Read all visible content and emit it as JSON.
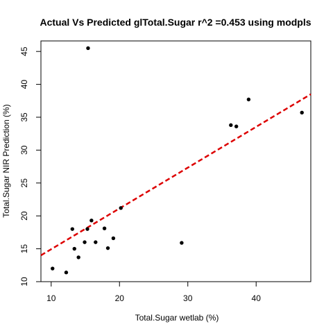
{
  "chart_data": {
    "type": "scatter",
    "title": "Actual Vs Predicted glTotal.Sugar r^2 =0.453 using modpls",
    "xlabel": "Total.Sugar wetlab (%)",
    "ylabel": "Total.Sugar NIR Prediction (%)",
    "xlim": [
      8.5,
      48.0
    ],
    "ylim": [
      10.0,
      46.6
    ],
    "x_ticks": [
      10,
      20,
      30,
      40
    ],
    "y_ticks": [
      10,
      15,
      20,
      25,
      30,
      35,
      40,
      45
    ],
    "grid": false,
    "legend": "none",
    "points": [
      {
        "x": 10.2,
        "y": 12.0
      },
      {
        "x": 12.2,
        "y": 11.4
      },
      {
        "x": 13.1,
        "y": 18.0
      },
      {
        "x": 13.4,
        "y": 15.0
      },
      {
        "x": 14.0,
        "y": 13.7
      },
      {
        "x": 14.9,
        "y": 16.0
      },
      {
        "x": 15.3,
        "y": 18.0
      },
      {
        "x": 15.4,
        "y": 45.5
      },
      {
        "x": 15.9,
        "y": 19.3
      },
      {
        "x": 16.5,
        "y": 16.0
      },
      {
        "x": 17.8,
        "y": 18.1
      },
      {
        "x": 18.3,
        "y": 15.1
      },
      {
        "x": 19.1,
        "y": 16.6
      },
      {
        "x": 20.2,
        "y": 21.2
      },
      {
        "x": 29.1,
        "y": 15.9
      },
      {
        "x": 36.3,
        "y": 33.8
      },
      {
        "x": 37.1,
        "y": 33.6
      },
      {
        "x": 38.9,
        "y": 37.7
      },
      {
        "x": 46.7,
        "y": 35.7
      }
    ],
    "fit_line": {
      "x": [
        8.5,
        48.0
      ],
      "y": [
        14.0,
        38.5
      ],
      "color": "#dd0000",
      "style": "dashed"
    },
    "point_color": "#000000"
  }
}
